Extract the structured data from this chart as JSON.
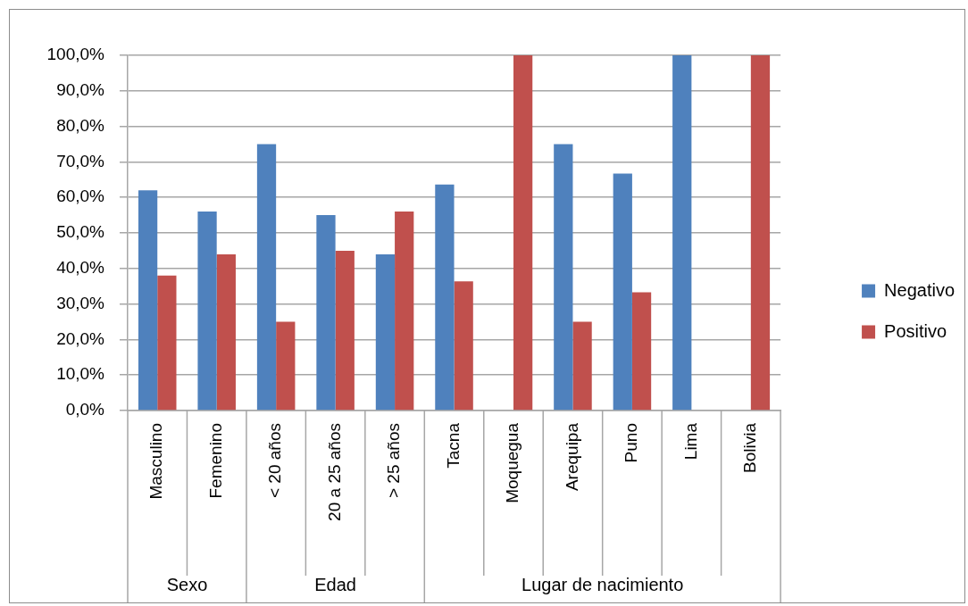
{
  "chart_data": {
    "type": "bar",
    "categories": [
      "Masculino",
      "Femenino",
      "< 20 años",
      "20 a 25 años",
      "> 25 años",
      "Tacna",
      "Moquegua",
      "Arequipa",
      "Puno",
      "Lima",
      "Bolivia"
    ],
    "series": [
      {
        "name": "Negativo",
        "color": "#4f81bd",
        "values": [
          62,
          56,
          75,
          55,
          44,
          63.6,
          0,
          75,
          66.7,
          100,
          0
        ]
      },
      {
        "name": "Positivo",
        "color": "#c0504d",
        "values": [
          38,
          44,
          25,
          45,
          56,
          36.4,
          100,
          25,
          33.3,
          0,
          100
        ]
      }
    ],
    "ylim": [
      0,
      100
    ],
    "yticks": [
      {
        "value": 0,
        "label": "0,0%"
      },
      {
        "value": 10,
        "label": "10,0%"
      },
      {
        "value": 20,
        "label": "20,0%"
      },
      {
        "value": 30,
        "label": "30,0%"
      },
      {
        "value": 40,
        "label": "40,0%"
      },
      {
        "value": 50,
        "label": "50,0%"
      },
      {
        "value": 60,
        "label": "60,0%"
      },
      {
        "value": 70,
        "label": "70,0%"
      },
      {
        "value": 80,
        "label": "80,0%"
      },
      {
        "value": 90,
        "label": "90,0%"
      },
      {
        "value": 100,
        "label": "100,0%"
      }
    ],
    "grid": "y",
    "legend": "right",
    "annotations": [
      "Sexo",
      "Edad",
      "Lugar de nacimiento"
    ]
  }
}
